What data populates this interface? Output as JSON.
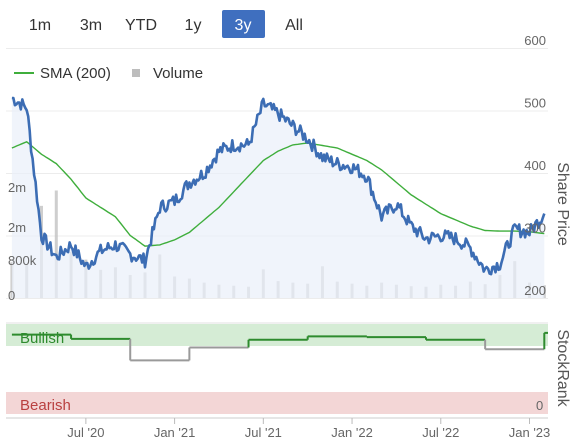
{
  "range_buttons": [
    {
      "label": "1m",
      "active": false
    },
    {
      "label": "3m",
      "active": false
    },
    {
      "label": "YTD",
      "active": false
    },
    {
      "label": "1y",
      "active": false
    },
    {
      "label": "3y",
      "active": true
    },
    {
      "label": "All",
      "active": false
    }
  ],
  "legend": {
    "sma": "SMA (200)",
    "volume": "Volume"
  },
  "colors": {
    "price": "#3c6db4",
    "sma": "#3fae3c",
    "volume": "#bdbdbd",
    "bullish_band": "#d5ecd5",
    "bearish_band": "#f3d6d6",
    "rank_bull": "#2e8b2e",
    "rank_grey": "#9a9a9a",
    "button_active": "#3f6fbf"
  },
  "chart_data": [
    {
      "type": "line",
      "title": "",
      "ylabel": "Share Price",
      "ylim": [
        200,
        600
      ],
      "y_ticks": [
        "600",
        "500",
        "400",
        "300",
        "200"
      ],
      "x_ticks": [
        "Jul '20",
        "Jan '21",
        "Jul '21",
        "Jan '22",
        "Jul '22",
        "Jan '23"
      ],
      "x": [
        "2020-02",
        "2020-03",
        "2020-04",
        "2020-05",
        "2020-06",
        "2020-07",
        "2020-08",
        "2020-09",
        "2020-10",
        "2020-11",
        "2020-12",
        "2021-01",
        "2021-02",
        "2021-03",
        "2021-04",
        "2021-05",
        "2021-06",
        "2021-07",
        "2021-08",
        "2021-09",
        "2021-10",
        "2021-11",
        "2021-12",
        "2022-01",
        "2022-02",
        "2022-03",
        "2022-04",
        "2022-05",
        "2022-06",
        "2022-07",
        "2022-08",
        "2022-09",
        "2022-10",
        "2022-11",
        "2022-12",
        "2023-01",
        "2023-02"
      ],
      "series": [
        {
          "name": "",
          "values": [
            520,
            505,
            300,
            265,
            285,
            250,
            275,
            285,
            270,
            260,
            345,
            355,
            385,
            400,
            435,
            445,
            445,
            510,
            495,
            475,
            455,
            425,
            415,
            410,
            395,
            330,
            350,
            315,
            295,
            300,
            295,
            280,
            245,
            255,
            310,
            305,
            335
          ]
        },
        {
          "name": "SMA (200)",
          "values": [
            440,
            450,
            430,
            415,
            390,
            360,
            345,
            330,
            300,
            283,
            285,
            293,
            305,
            325,
            345,
            370,
            395,
            420,
            435,
            445,
            448,
            444,
            440,
            430,
            420,
            405,
            385,
            365,
            350,
            335,
            325,
            315,
            308,
            307,
            307,
            306,
            303
          ]
        }
      ],
      "volume": {
        "ylim": [
          0,
          2500000
        ],
        "y_ticks": [
          "2m",
          "2m",
          "800k",
          "0"
        ],
        "values": [
          700000,
          650000,
          1800000,
          2100000,
          900000,
          750000,
          550000,
          600000,
          450000,
          500000,
          850000,
          420000,
          380000,
          300000,
          260000,
          240000,
          220000,
          560000,
          330000,
          300000,
          280000,
          620000,
          320000,
          280000,
          240000,
          300000,
          260000,
          230000,
          220000,
          260000,
          240000,
          320000,
          270000,
          450000,
          720000,
          300000,
          250000
        ]
      }
    },
    {
      "type": "line",
      "ylabel": "StockRank",
      "ylim": [
        0,
        100
      ],
      "y_ticks": [
        "0"
      ],
      "bands": [
        "Bullish",
        "Bearish"
      ],
      "x": [
        "2020-02",
        "2020-06",
        "2020-10",
        "2021-02",
        "2021-06",
        "2021-10",
        "2022-02",
        "2022-06",
        "2022-10",
        "2023-02"
      ],
      "series": [
        {
          "name": "",
          "values": [
            90,
            85,
            60,
            75,
            84,
            88,
            87,
            84,
            73,
            92
          ]
        }
      ]
    }
  ]
}
